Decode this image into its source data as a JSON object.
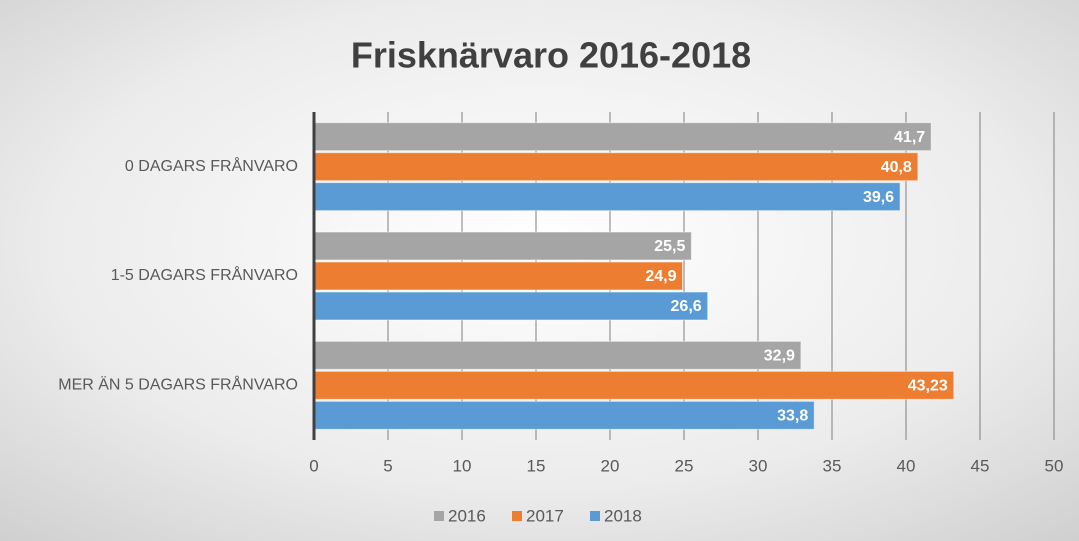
{
  "chart_data": {
    "type": "hbar",
    "title": "Frisknärvaro 2016-2018",
    "categories": [
      "0 DAGARS FRÅNVARO",
      "1-5 DAGARS FRÅNVARO",
      "MER ÄN 5 DAGARS FRÅNVARO"
    ],
    "series": [
      {
        "name": "2016",
        "color": "#a5a5a5",
        "values": [
          41.7,
          25.5,
          32.9
        ],
        "value_labels": [
          "41,7",
          "25,5",
          "32,9"
        ]
      },
      {
        "name": "2017",
        "color": "#ed7d31",
        "values": [
          40.8,
          24.9,
          43.23
        ],
        "value_labels": [
          "40,8",
          "24,9",
          "43,23"
        ]
      },
      {
        "name": "2018",
        "color": "#5b9bd5",
        "values": [
          39.6,
          26.6,
          33.8
        ],
        "value_labels": [
          "39,6",
          "26,6",
          "33,8"
        ]
      }
    ],
    "xlim": [
      0,
      50
    ],
    "xticks": [
      0,
      5,
      10,
      15,
      20,
      25,
      30,
      35,
      40,
      45,
      50
    ],
    "grid": true,
    "legend": "bottom"
  }
}
